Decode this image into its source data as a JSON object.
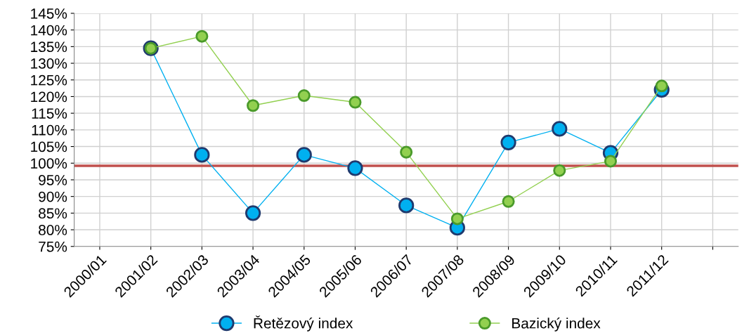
{
  "chart_data": {
    "type": "line",
    "categories": [
      "2000/01",
      "2001/02",
      "2002/03",
      "2003/04",
      "2004/05",
      "2005/06",
      "2006/07",
      "2007/08",
      "2008/09",
      "2009/10",
      "2010/11",
      "2011/12",
      null
    ],
    "series": [
      {
        "name": "Řetězový index",
        "color": "#00b0f0",
        "values": [
          null,
          134.5,
          102.5,
          85,
          102.5,
          98.5,
          87.3,
          80.6,
          106.2,
          110.3,
          103.1,
          122.0,
          null
        ]
      },
      {
        "name": "Bazický index",
        "color": "#92d050",
        "values": [
          null,
          134.5,
          138.1,
          117.3,
          120.3,
          118.3,
          103.3,
          83.3,
          88.5,
          97.8,
          100.6,
          123.2,
          null
        ]
      }
    ],
    "ylim": [
      75,
      145
    ],
    "yticks": [
      {
        "value": 75,
        "label": "75%"
      },
      {
        "value": 80,
        "label": "80%"
      },
      {
        "value": 85,
        "label": "85%"
      },
      {
        "value": 90,
        "label": "90%"
      },
      {
        "value": 95,
        "label": "95%"
      },
      {
        "value": 100,
        "label": "100%"
      },
      {
        "value": 105,
        "label": "105%"
      },
      {
        "value": 110,
        "label": "110%"
      },
      {
        "value": 115,
        "label": "115%"
      },
      {
        "value": 120,
        "label": "120%"
      },
      {
        "value": 125,
        "label": "125%"
      },
      {
        "value": 130,
        "label": "130%"
      },
      {
        "value": 135,
        "label": "135%"
      },
      {
        "value": 140,
        "label": "140%"
      },
      {
        "value": 145,
        "label": "145%"
      }
    ],
    "ref_lines": [
      {
        "axis": "y",
        "value": 99.2,
        "color": "#c0504d"
      }
    ],
    "grid": true,
    "legend": "bottom",
    "marker": "circle",
    "line_style": "solid"
  }
}
